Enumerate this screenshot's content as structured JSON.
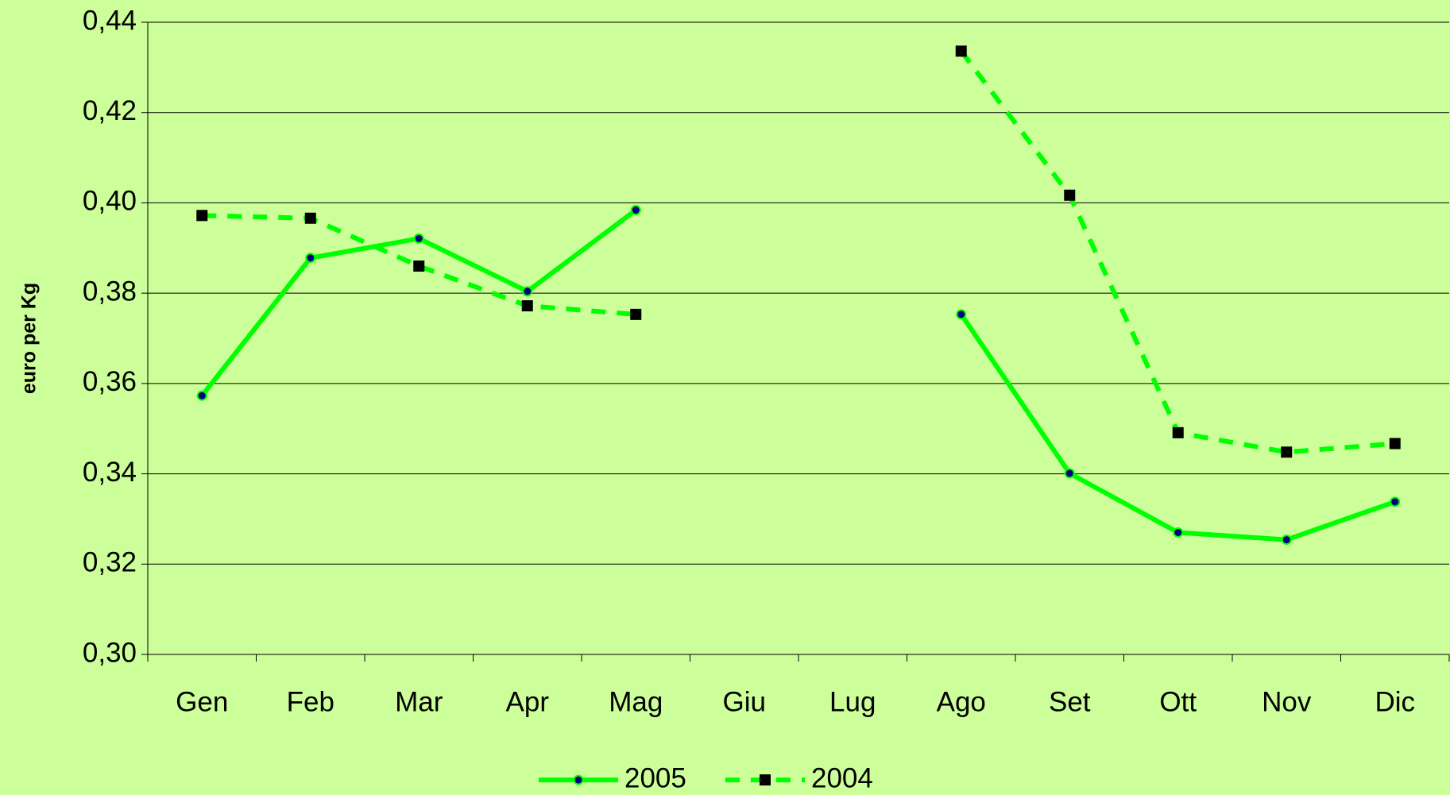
{
  "chart_data": {
    "type": "line",
    "y_label": "euro per Kg",
    "categories": [
      "Gen",
      "Feb",
      "Mar",
      "Apr",
      "Mag",
      "Giu",
      "Lug",
      "Ago",
      "Set",
      "Ott",
      "Nov",
      "Dic"
    ],
    "series": [
      {
        "name": "2005",
        "color": "#00ff00",
        "marker_color": "#000080",
        "dashed": false,
        "marker": "circle",
        "values": [
          0.3573,
          0.3878,
          0.3921,
          0.3804,
          0.3984,
          null,
          null,
          0.3753,
          0.3401,
          0.327,
          0.3254,
          0.3338
        ]
      },
      {
        "name": "2004",
        "color": "#00ff00",
        "marker_color": "#000000",
        "dashed": true,
        "marker": "square",
        "values": [
          0.3972,
          0.3966,
          0.386,
          0.3772,
          0.3753,
          null,
          null,
          0.4336,
          0.4017,
          0.3491,
          0.3448,
          0.3467
        ]
      }
    ],
    "ylim": [
      0.3,
      0.44
    ],
    "yticks": [
      {
        "value": 0.3,
        "label": "0,30"
      },
      {
        "value": 0.32,
        "label": "0,32"
      },
      {
        "value": 0.34,
        "label": "0,34"
      },
      {
        "value": 0.36,
        "label": "0,36"
      },
      {
        "value": 0.38,
        "label": "0,38"
      },
      {
        "value": 0.4,
        "label": "0,40"
      },
      {
        "value": 0.42,
        "label": "0,42"
      },
      {
        "value": 0.44,
        "label": "0,44"
      }
    ],
    "grid": true,
    "legend": "bottom"
  }
}
